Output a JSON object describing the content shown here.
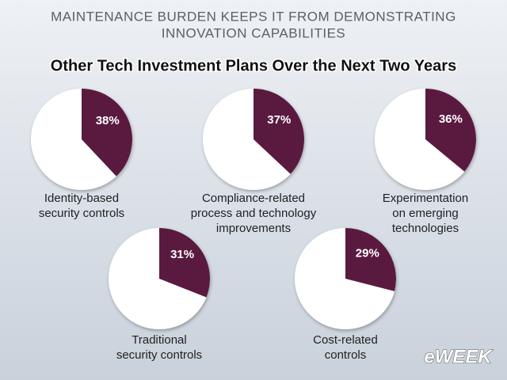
{
  "header": {
    "kicker_lines": [
      "MAINTENANCE BURDEN KEEPS IT FROM DEMONSTRATING",
      "INNOVATION CAPABILITIES"
    ],
    "title": "Other Tech Investment Plans Over the Next Two Years"
  },
  "brand": "eWEEK",
  "chart_data": [
    {
      "type": "pie",
      "title_lines": [
        "Identity-based",
        "security controls"
      ],
      "values": [
        38
      ],
      "value_labels": [
        "38%"
      ],
      "color": "#5a1a3f"
    },
    {
      "type": "pie",
      "title_lines": [
        "Compliance-related",
        "process and technology",
        "improvements"
      ],
      "values": [
        37
      ],
      "value_labels": [
        "37%"
      ],
      "color": "#5a1a3f"
    },
    {
      "type": "pie",
      "title_lines": [
        "Experimentation",
        "on emerging",
        "technologies"
      ],
      "values": [
        36
      ],
      "value_labels": [
        "36%"
      ],
      "color": "#5a1a3f"
    },
    {
      "type": "pie",
      "title_lines": [
        "Traditional",
        "security controls"
      ],
      "values": [
        31
      ],
      "value_labels": [
        "31%"
      ],
      "color": "#5a1a3f"
    },
    {
      "type": "pie",
      "title_lines": [
        "Cost-related",
        "controls"
      ],
      "values": [
        29
      ],
      "value_labels": [
        "29%"
      ],
      "color": "#5a1a3f"
    }
  ]
}
